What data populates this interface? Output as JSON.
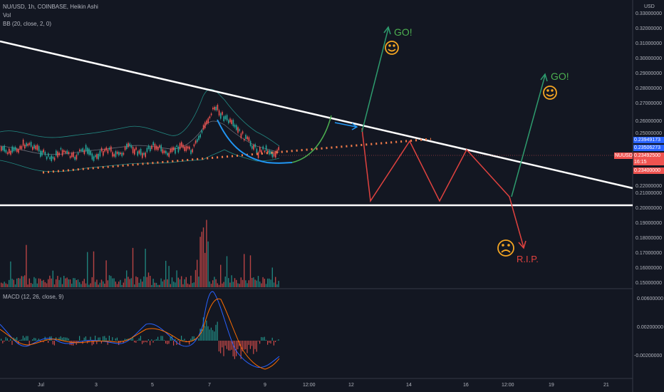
{
  "header": {
    "symbol_line": "NU/USD, 1h, COINBASE, Heikin Ashi",
    "vol_label": "Vol",
    "bb_label": "BB (20, close, 2, 0)",
    "macd_label": "MACD (12, 26, close, 9)"
  },
  "price_axis": {
    "unit": "USD",
    "ticks": [
      "0.33000000",
      "0.32000000",
      "0.31000000",
      "0.30000000",
      "0.29000000",
      "0.28000000",
      "0.27000000",
      "0.26000000",
      "0.25000000",
      "0.22000000",
      "0.21000000",
      "0.20000000",
      "0.19000000",
      "0.18000000",
      "0.17000000",
      "0.16000000",
      "0.15000000"
    ]
  },
  "price_tags": {
    "upper_bb": "0.23949173",
    "basis": "0.23506273",
    "symbol": "NUUSD",
    "last_price": "0.23492500",
    "countdown": "16:15",
    "lower_bb": "0.23400000"
  },
  "macd_axis": {
    "ticks": [
      "0.00600000",
      "0.00200000",
      "-0.00200000"
    ]
  },
  "time_axis": {
    "ticks": [
      "Jul",
      "3",
      "5",
      "7",
      "9",
      "12:00",
      "12",
      "14",
      "16",
      "12:00",
      "19",
      "21"
    ]
  },
  "annotations": {
    "go_top": "GO!",
    "go_right": "GO!",
    "rip": "R.I.P.",
    "happy_face": "☺",
    "happy_face_2": "☺",
    "sad_face": "☹"
  },
  "colors": {
    "background": "#131722",
    "up": "#26a69a",
    "down": "#ef5350",
    "bb_band": "#26a69a",
    "trendline": "#ffffff",
    "support_dotted": "#f57c4a",
    "cup_blue": "#2196f3",
    "cup_green": "#4caf50",
    "go_arrow": "#2e9c6e",
    "go_text": "#4caf50",
    "path_red": "#e0423f",
    "face_orange": "#f5a623",
    "macd_line": "#2962ff",
    "signal_line": "#ff6d00",
    "price_tag_red": "#ef5350",
    "price_tag_blue": "#2962ff",
    "price_tag_teal": "#26a69a"
  }
}
